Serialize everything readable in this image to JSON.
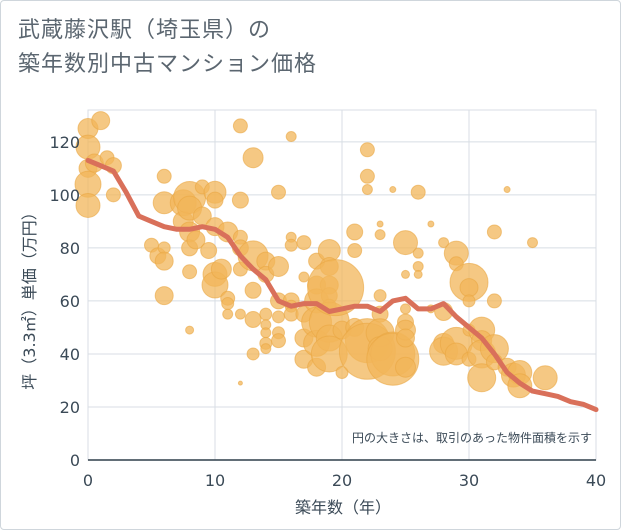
{
  "header": {
    "title_line1": "武蔵藤沢駅（埼玉県）の",
    "title_line2": "築年数別中古マンション価格"
  },
  "chart_data": {
    "type": "scatter",
    "title": "武蔵藤沢駅（埼玉県）の築年数別中古マンション価格",
    "xlabel": "築年数（年）",
    "ylabel": "坪（3.3㎡）単価（万円）",
    "xlim": [
      0,
      40
    ],
    "ylim": [
      0,
      132
    ],
    "x_ticks": [
      0,
      10,
      20,
      30,
      40
    ],
    "y_ticks": [
      0,
      20,
      40,
      60,
      80,
      100,
      120
    ],
    "grid": true,
    "note": "円の大きさは、取引のあった物件面積を示す",
    "colors": {
      "bubble": "#f2b65a",
      "trend": "#d9705a",
      "grid": "#d8dee4",
      "text": "#3b4a57"
    },
    "trend": {
      "x": [
        0,
        1,
        2,
        3,
        4,
        5,
        6,
        7,
        8,
        9,
        10,
        11,
        12,
        13,
        14,
        15,
        16,
        17,
        18,
        19,
        20,
        21,
        22,
        23,
        24,
        25,
        26,
        27,
        28,
        29,
        30,
        31,
        32,
        33,
        34,
        35,
        36,
        37,
        38,
        39,
        40
      ],
      "y": [
        113,
        111,
        109,
        101,
        92,
        90,
        88,
        87,
        87,
        88,
        87,
        84,
        77,
        72,
        68,
        60,
        58,
        59,
        59,
        56,
        57,
        58,
        58,
        56,
        60,
        61,
        57,
        57,
        59,
        54,
        50,
        46,
        40,
        33,
        29,
        26,
        25,
        24,
        22,
        21,
        19
      ]
    },
    "bubbles": [
      {
        "x": 0,
        "y": 125,
        "s": 10
      },
      {
        "x": 0,
        "y": 118,
        "s": 12
      },
      {
        "x": 0,
        "y": 110,
        "s": 9
      },
      {
        "x": 0,
        "y": 104,
        "s": 13
      },
      {
        "x": 0,
        "y": 96,
        "s": 12
      },
      {
        "x": 0.5,
        "y": 112,
        "s": 9
      },
      {
        "x": 1,
        "y": 128,
        "s": 9
      },
      {
        "x": 1.5,
        "y": 114,
        "s": 7
      },
      {
        "x": 2,
        "y": 111,
        "s": 8
      },
      {
        "x": 2,
        "y": 100,
        "s": 7
      },
      {
        "x": 5,
        "y": 81,
        "s": 7
      },
      {
        "x": 5.5,
        "y": 77,
        "s": 8
      },
      {
        "x": 6,
        "y": 107,
        "s": 7
      },
      {
        "x": 6,
        "y": 97,
        "s": 11
      },
      {
        "x": 6,
        "y": 80,
        "s": 6
      },
      {
        "x": 6,
        "y": 75,
        "s": 9
      },
      {
        "x": 6,
        "y": 62,
        "s": 9
      },
      {
        "x": 7.5,
        "y": 97,
        "s": 13
      },
      {
        "x": 7.5,
        "y": 90,
        "s": 10
      },
      {
        "x": 8,
        "y": 99,
        "s": 16
      },
      {
        "x": 8,
        "y": 95,
        "s": 12
      },
      {
        "x": 8,
        "y": 86,
        "s": 10
      },
      {
        "x": 8,
        "y": 80,
        "s": 8
      },
      {
        "x": 8,
        "y": 71,
        "s": 7
      },
      {
        "x": 8,
        "y": 49,
        "s": 4
      },
      {
        "x": 8.5,
        "y": 83,
        "s": 9
      },
      {
        "x": 9,
        "y": 103,
        "s": 7
      },
      {
        "x": 9,
        "y": 92,
        "s": 9
      },
      {
        "x": 9.5,
        "y": 79,
        "s": 8
      },
      {
        "x": 10,
        "y": 101,
        "s": 11
      },
      {
        "x": 10,
        "y": 98,
        "s": 8
      },
      {
        "x": 10,
        "y": 88,
        "s": 9
      },
      {
        "x": 10,
        "y": 70,
        "s": 12
      },
      {
        "x": 10,
        "y": 66,
        "s": 13
      },
      {
        "x": 10.5,
        "y": 72,
        "s": 10
      },
      {
        "x": 11,
        "y": 86,
        "s": 10
      },
      {
        "x": 11,
        "y": 61,
        "s": 7
      },
      {
        "x": 11,
        "y": 59,
        "s": 6
      },
      {
        "x": 11,
        "y": 55,
        "s": 5
      },
      {
        "x": 12,
        "y": 126,
        "s": 7
      },
      {
        "x": 12,
        "y": 98,
        "s": 8
      },
      {
        "x": 12,
        "y": 84,
        "s": 7
      },
      {
        "x": 12,
        "y": 80,
        "s": 8
      },
      {
        "x": 12,
        "y": 72,
        "s": 7
      },
      {
        "x": 12,
        "y": 55,
        "s": 5
      },
      {
        "x": 12,
        "y": 29,
        "s": 2
      },
      {
        "x": 13,
        "y": 114,
        "s": 10
      },
      {
        "x": 13,
        "y": 77,
        "s": 15
      },
      {
        "x": 13,
        "y": 64,
        "s": 8
      },
      {
        "x": 13,
        "y": 53,
        "s": 8
      },
      {
        "x": 13,
        "y": 40,
        "s": 6
      },
      {
        "x": 14,
        "y": 75,
        "s": 9
      },
      {
        "x": 14,
        "y": 70,
        "s": 8
      },
      {
        "x": 14,
        "y": 55,
        "s": 6
      },
      {
        "x": 14,
        "y": 51,
        "s": 5
      },
      {
        "x": 14,
        "y": 48,
        "s": 5
      },
      {
        "x": 14,
        "y": 44,
        "s": 6
      },
      {
        "x": 14,
        "y": 42,
        "s": 5
      },
      {
        "x": 15,
        "y": 101,
        "s": 7
      },
      {
        "x": 15,
        "y": 73,
        "s": 10
      },
      {
        "x": 15,
        "y": 60,
        "s": 8
      },
      {
        "x": 15,
        "y": 54,
        "s": 6
      },
      {
        "x": 15,
        "y": 48,
        "s": 6
      },
      {
        "x": 15,
        "y": 45,
        "s": 7
      },
      {
        "x": 16,
        "y": 122,
        "s": 5
      },
      {
        "x": 16,
        "y": 84,
        "s": 5
      },
      {
        "x": 16,
        "y": 81,
        "s": 6
      },
      {
        "x": 16,
        "y": 60,
        "s": 8
      },
      {
        "x": 16,
        "y": 58,
        "s": 6
      },
      {
        "x": 16,
        "y": 55,
        "s": 7
      },
      {
        "x": 17,
        "y": 82,
        "s": 7
      },
      {
        "x": 17,
        "y": 69,
        "s": 5
      },
      {
        "x": 17,
        "y": 55,
        "s": 8
      },
      {
        "x": 17,
        "y": 46,
        "s": 9
      },
      {
        "x": 17,
        "y": 38,
        "s": 9
      },
      {
        "x": 18,
        "y": 75,
        "s": 8
      },
      {
        "x": 18,
        "y": 66,
        "s": 9
      },
      {
        "x": 18,
        "y": 60,
        "s": 12
      },
      {
        "x": 18,
        "y": 52,
        "s": 15
      },
      {
        "x": 18,
        "y": 44,
        "s": 13
      },
      {
        "x": 18,
        "y": 35,
        "s": 9
      },
      {
        "x": 19,
        "y": 79,
        "s": 11
      },
      {
        "x": 19,
        "y": 73,
        "s": 9
      },
      {
        "x": 19,
        "y": 66,
        "s": 9
      },
      {
        "x": 19,
        "y": 62,
        "s": 8
      },
      {
        "x": 19,
        "y": 58,
        "s": 7
      },
      {
        "x": 19,
        "y": 52,
        "s": 20
      },
      {
        "x": 19,
        "y": 46,
        "s": 13
      },
      {
        "x": 19,
        "y": 40,
        "s": 18
      },
      {
        "x": 19.5,
        "y": 65,
        "s": 28
      },
      {
        "x": 20,
        "y": 49,
        "s": 9
      },
      {
        "x": 20,
        "y": 33,
        "s": 6
      },
      {
        "x": 21,
        "y": 86,
        "s": 8
      },
      {
        "x": 21,
        "y": 79,
        "s": 7
      },
      {
        "x": 21,
        "y": 50,
        "s": 9
      },
      {
        "x": 22,
        "y": 117,
        "s": 7
      },
      {
        "x": 22,
        "y": 107,
        "s": 7
      },
      {
        "x": 22,
        "y": 102,
        "s": 5
      },
      {
        "x": 22,
        "y": 45,
        "s": 22
      },
      {
        "x": 22,
        "y": 41,
        "s": 28
      },
      {
        "x": 23,
        "y": 89,
        "s": 3
      },
      {
        "x": 23,
        "y": 85,
        "s": 5
      },
      {
        "x": 23,
        "y": 62,
        "s": 6
      },
      {
        "x": 23,
        "y": 55,
        "s": 8
      },
      {
        "x": 23,
        "y": 48,
        "s": 14
      },
      {
        "x": 23,
        "y": 42,
        "s": 12
      },
      {
        "x": 24,
        "y": 102,
        "s": 3
      },
      {
        "x": 24,
        "y": 40,
        "s": 22
      },
      {
        "x": 24,
        "y": 38,
        "s": 26
      },
      {
        "x": 25,
        "y": 82,
        "s": 12
      },
      {
        "x": 25,
        "y": 70,
        "s": 4
      },
      {
        "x": 25,
        "y": 57,
        "s": 5
      },
      {
        "x": 25,
        "y": 52,
        "s": 8
      },
      {
        "x": 25,
        "y": 49,
        "s": 10
      },
      {
        "x": 25,
        "y": 46,
        "s": 9
      },
      {
        "x": 25,
        "y": 35,
        "s": 10
      },
      {
        "x": 26,
        "y": 101,
        "s": 7
      },
      {
        "x": 26,
        "y": 78,
        "s": 5
      },
      {
        "x": 26,
        "y": 73,
        "s": 5
      },
      {
        "x": 26,
        "y": 70,
        "s": 4
      },
      {
        "x": 27,
        "y": 89,
        "s": 3
      },
      {
        "x": 27,
        "y": 57,
        "s": 4
      },
      {
        "x": 28,
        "y": 82,
        "s": 5
      },
      {
        "x": 28,
        "y": 56,
        "s": 9
      },
      {
        "x": 28,
        "y": 44,
        "s": 10
      },
      {
        "x": 28,
        "y": 41,
        "s": 14
      },
      {
        "x": 29,
        "y": 78,
        "s": 12
      },
      {
        "x": 29,
        "y": 74,
        "s": 7
      },
      {
        "x": 29,
        "y": 44,
        "s": 16
      },
      {
        "x": 29,
        "y": 40,
        "s": 11
      },
      {
        "x": 30,
        "y": 67,
        "s": 19
      },
      {
        "x": 30,
        "y": 65,
        "s": 9
      },
      {
        "x": 30,
        "y": 60,
        "s": 6
      },
      {
        "x": 30,
        "y": 49,
        "s": 6
      },
      {
        "x": 30,
        "y": 38,
        "s": 7
      },
      {
        "x": 31,
        "y": 49,
        "s": 13
      },
      {
        "x": 31,
        "y": 45,
        "s": 10
      },
      {
        "x": 31,
        "y": 40,
        "s": 14
      },
      {
        "x": 31,
        "y": 31,
        "s": 14
      },
      {
        "x": 32,
        "y": 86,
        "s": 7
      },
      {
        "x": 32,
        "y": 60,
        "s": 7
      },
      {
        "x": 32,
        "y": 42,
        "s": 14
      },
      {
        "x": 32,
        "y": 37,
        "s": 8
      },
      {
        "x": 33,
        "y": 102,
        "s": 3
      },
      {
        "x": 33,
        "y": 35,
        "s": 9
      },
      {
        "x": 33.5,
        "y": 32,
        "s": 12
      },
      {
        "x": 34,
        "y": 33,
        "s": 12
      },
      {
        "x": 34,
        "y": 28,
        "s": 12
      },
      {
        "x": 35,
        "y": 82,
        "s": 5
      },
      {
        "x": 36,
        "y": 31,
        "s": 12
      }
    ]
  }
}
